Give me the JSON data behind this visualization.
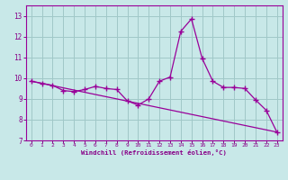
{
  "xlabel": "Windchill (Refroidissement éolien,°C)",
  "xlim": [
    -0.5,
    23.5
  ],
  "ylim": [
    7,
    13.5
  ],
  "yticks": [
    7,
    8,
    9,
    10,
    11,
    12,
    13
  ],
  "xticks": [
    0,
    1,
    2,
    3,
    4,
    5,
    6,
    7,
    8,
    9,
    10,
    11,
    12,
    13,
    14,
    15,
    16,
    17,
    18,
    19,
    20,
    21,
    22,
    23
  ],
  "line1_x": [
    0,
    1,
    2,
    3,
    4,
    5,
    6,
    7,
    8,
    9,
    10,
    11,
    12,
    13,
    14,
    15,
    16,
    17,
    18,
    19,
    20,
    21,
    22,
    23
  ],
  "line1_y": [
    9.85,
    9.75,
    9.65,
    9.4,
    9.35,
    9.45,
    9.6,
    9.5,
    9.45,
    8.9,
    8.7,
    9.0,
    9.85,
    10.05,
    12.25,
    12.85,
    10.95,
    9.85,
    9.55,
    9.55,
    9.5,
    8.95,
    8.45,
    7.4
  ],
  "line2_x": [
    0,
    23
  ],
  "line2_y": [
    9.85,
    7.4
  ],
  "line_color": "#990099",
  "bg_color": "#c8e8e8",
  "grid_color": "#a0c8c8",
  "tick_label_color": "#880088",
  "axis_label_color": "#880088",
  "marker": "+"
}
